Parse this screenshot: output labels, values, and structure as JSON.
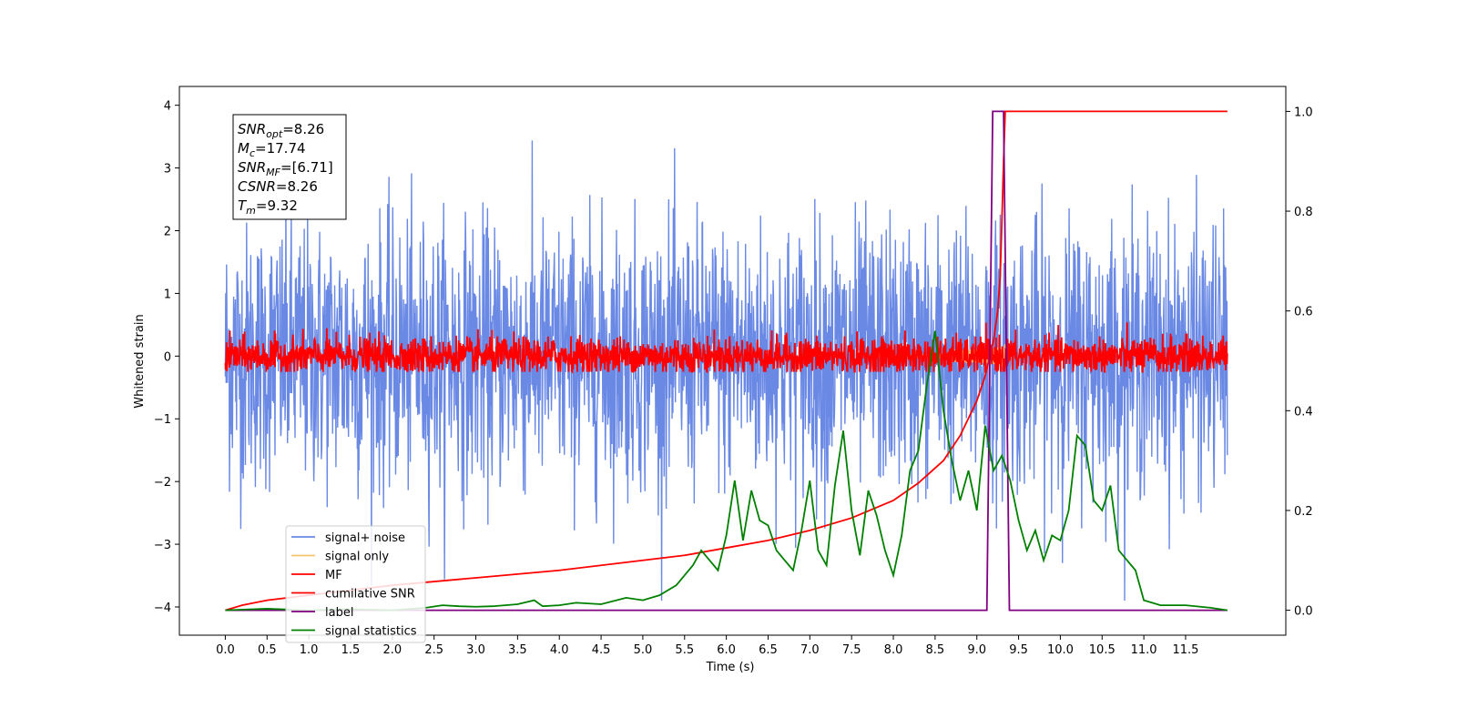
{
  "chart_data": {
    "type": "line",
    "xlabel": "Time (s)",
    "ylabel": "Whitened strain",
    "xlim": [
      -0.55,
      12.7
    ],
    "ylim_left": [
      -4.45,
      4.3
    ],
    "ylim_right": [
      -0.05,
      1.05
    ],
    "xticks": [
      "0.0",
      "0.5",
      "1.0",
      "1.5",
      "2.0",
      "2.5",
      "3.0",
      "3.5",
      "4.0",
      "4.5",
      "5.0",
      "5.5",
      "6.0",
      "6.5",
      "7.0",
      "7.5",
      "8.0",
      "8.5",
      "9.0",
      "9.5",
      "10.0",
      "10.5",
      "11.0",
      "11.5"
    ],
    "yticks_left": [
      "4",
      "3",
      "2",
      "1",
      "0",
      "−1",
      "−2",
      "−3",
      "−4"
    ],
    "yticks_right": [
      "1.0",
      "0.8",
      "0.6",
      "0.4",
      "0.2",
      "0.0"
    ],
    "info_box": [
      {
        "base": "SNR",
        "sub": "opt",
        "value": "=8.26"
      },
      {
        "base": "M",
        "sub": "c",
        "value": "=17.74"
      },
      {
        "base": "SNR",
        "sub": "MF",
        "value": "=[6.71]"
      },
      {
        "base": "CSNR",
        "sub": "",
        "value": "=8.26"
      },
      {
        "base": "T",
        "sub": "m",
        "value": "=9.32"
      }
    ],
    "series": [
      {
        "name": "signal+ noise",
        "color": "#6a89e5",
        "axis": "left",
        "kind": "noise",
        "range": [
          0.0,
          12.0
        ],
        "sigma": 1.0
      },
      {
        "name": "signal only",
        "color": "#f5c46b",
        "axis": "left",
        "kind": "chirp",
        "peak_time": 9.32,
        "peak_amplitude": 1.0
      },
      {
        "name": "MF",
        "color": "#ff0000",
        "axis": "left",
        "kind": "noise_small",
        "range": [
          0.0,
          12.0
        ],
        "sigma": 0.15
      },
      {
        "name": "cumilative SNR",
        "color": "#ff0000",
        "axis": "right",
        "x": [
          0.0,
          0.2,
          0.5,
          1.0,
          2.0,
          3.0,
          4.0,
          5.0,
          5.5,
          6.0,
          6.5,
          7.0,
          7.5,
          8.0,
          8.3,
          8.6,
          8.8,
          9.0,
          9.1,
          9.2,
          9.25,
          9.28,
          9.3,
          9.32,
          9.34,
          12.0
        ],
        "values": [
          0.0,
          0.01,
          0.02,
          0.03,
          0.05,
          0.065,
          0.08,
          0.1,
          0.11,
          0.125,
          0.14,
          0.16,
          0.185,
          0.22,
          0.255,
          0.3,
          0.35,
          0.42,
          0.47,
          0.54,
          0.6,
          0.67,
          0.78,
          0.9,
          1.0,
          1.0
        ]
      },
      {
        "name": "label",
        "color": "#800080",
        "axis": "right",
        "x": [
          0.0,
          9.12,
          9.19,
          9.26,
          9.32,
          9.39,
          11.0,
          12.0
        ],
        "values": [
          0.0,
          0.0,
          1.0,
          1.0,
          1.0,
          0.0,
          0.0,
          0.0
        ]
      },
      {
        "name": "signal statistics",
        "color": "#008000",
        "axis": "right",
        "x": [
          0.0,
          0.5,
          1.0,
          1.5,
          2.0,
          2.4,
          2.6,
          2.8,
          3.0,
          3.2,
          3.5,
          3.7,
          3.8,
          4.0,
          4.2,
          4.5,
          4.8,
          5.0,
          5.2,
          5.4,
          5.5,
          5.6,
          5.7,
          5.8,
          5.9,
          6.0,
          6.1,
          6.2,
          6.3,
          6.4,
          6.5,
          6.6,
          6.7,
          6.8,
          6.9,
          7.0,
          7.1,
          7.2,
          7.3,
          7.4,
          7.5,
          7.6,
          7.7,
          7.8,
          7.9,
          8.0,
          8.1,
          8.2,
          8.3,
          8.4,
          8.5,
          8.6,
          8.7,
          8.8,
          8.9,
          9.0,
          9.1,
          9.2,
          9.3,
          9.4,
          9.5,
          9.6,
          9.7,
          9.8,
          9.9,
          10.0,
          10.1,
          10.2,
          10.3,
          10.4,
          10.5,
          10.6,
          10.7,
          10.8,
          10.9,
          11.0,
          11.2,
          11.5,
          11.8,
          12.0
        ],
        "values": [
          0.0,
          0.003,
          0.0,
          0.002,
          0.0,
          0.005,
          0.01,
          0.008,
          0.007,
          0.008,
          0.012,
          0.02,
          0.008,
          0.01,
          0.015,
          0.012,
          0.025,
          0.02,
          0.03,
          0.05,
          0.07,
          0.09,
          0.12,
          0.1,
          0.08,
          0.15,
          0.26,
          0.14,
          0.24,
          0.18,
          0.17,
          0.12,
          0.1,
          0.08,
          0.16,
          0.26,
          0.12,
          0.09,
          0.25,
          0.36,
          0.2,
          0.11,
          0.24,
          0.19,
          0.12,
          0.07,
          0.15,
          0.28,
          0.32,
          0.45,
          0.56,
          0.4,
          0.3,
          0.22,
          0.28,
          0.2,
          0.37,
          0.28,
          0.31,
          0.26,
          0.18,
          0.12,
          0.16,
          0.1,
          0.15,
          0.14,
          0.2,
          0.35,
          0.33,
          0.22,
          0.2,
          0.25,
          0.12,
          0.1,
          0.08,
          0.02,
          0.01,
          0.01,
          0.005,
          0.0
        ]
      }
    ],
    "legend_placement": "lower-left"
  }
}
